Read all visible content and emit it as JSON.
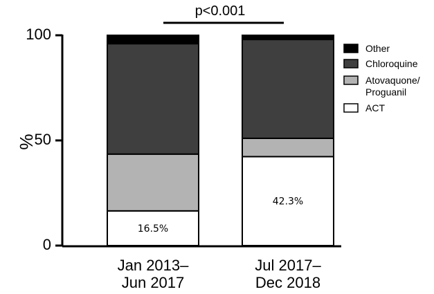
{
  "chart_data": {
    "type": "bar",
    "stacked": true,
    "ylabel": "%",
    "ylim": [
      0,
      100
    ],
    "yticks": [
      0,
      50,
      100
    ],
    "categories": [
      [
        "Jan 2013–",
        "Jun 2017"
      ],
      [
        "Jul 2017–",
        "Dec 2018"
      ]
    ],
    "series": [
      {
        "name": "ACT",
        "values": [
          16.5,
          42.3
        ],
        "color": "#ffffff"
      },
      {
        "name": "Atovaquone/ Proguanil",
        "legend_lines": [
          "Atovaquone/",
          "Proguanil"
        ],
        "values": [
          27.0,
          8.7
        ],
        "color": "#b3b3b3"
      },
      {
        "name": "Chloroquine",
        "values": [
          52.5,
          47.0
        ],
        "color": "#3f3f3f"
      },
      {
        "name": "Other",
        "values": [
          4.0,
          2.0
        ],
        "color": "#000000"
      }
    ],
    "data_labels": [
      "16.5%",
      "42.3%"
    ],
    "significance": "p<0.001",
    "legend_position": "right"
  }
}
